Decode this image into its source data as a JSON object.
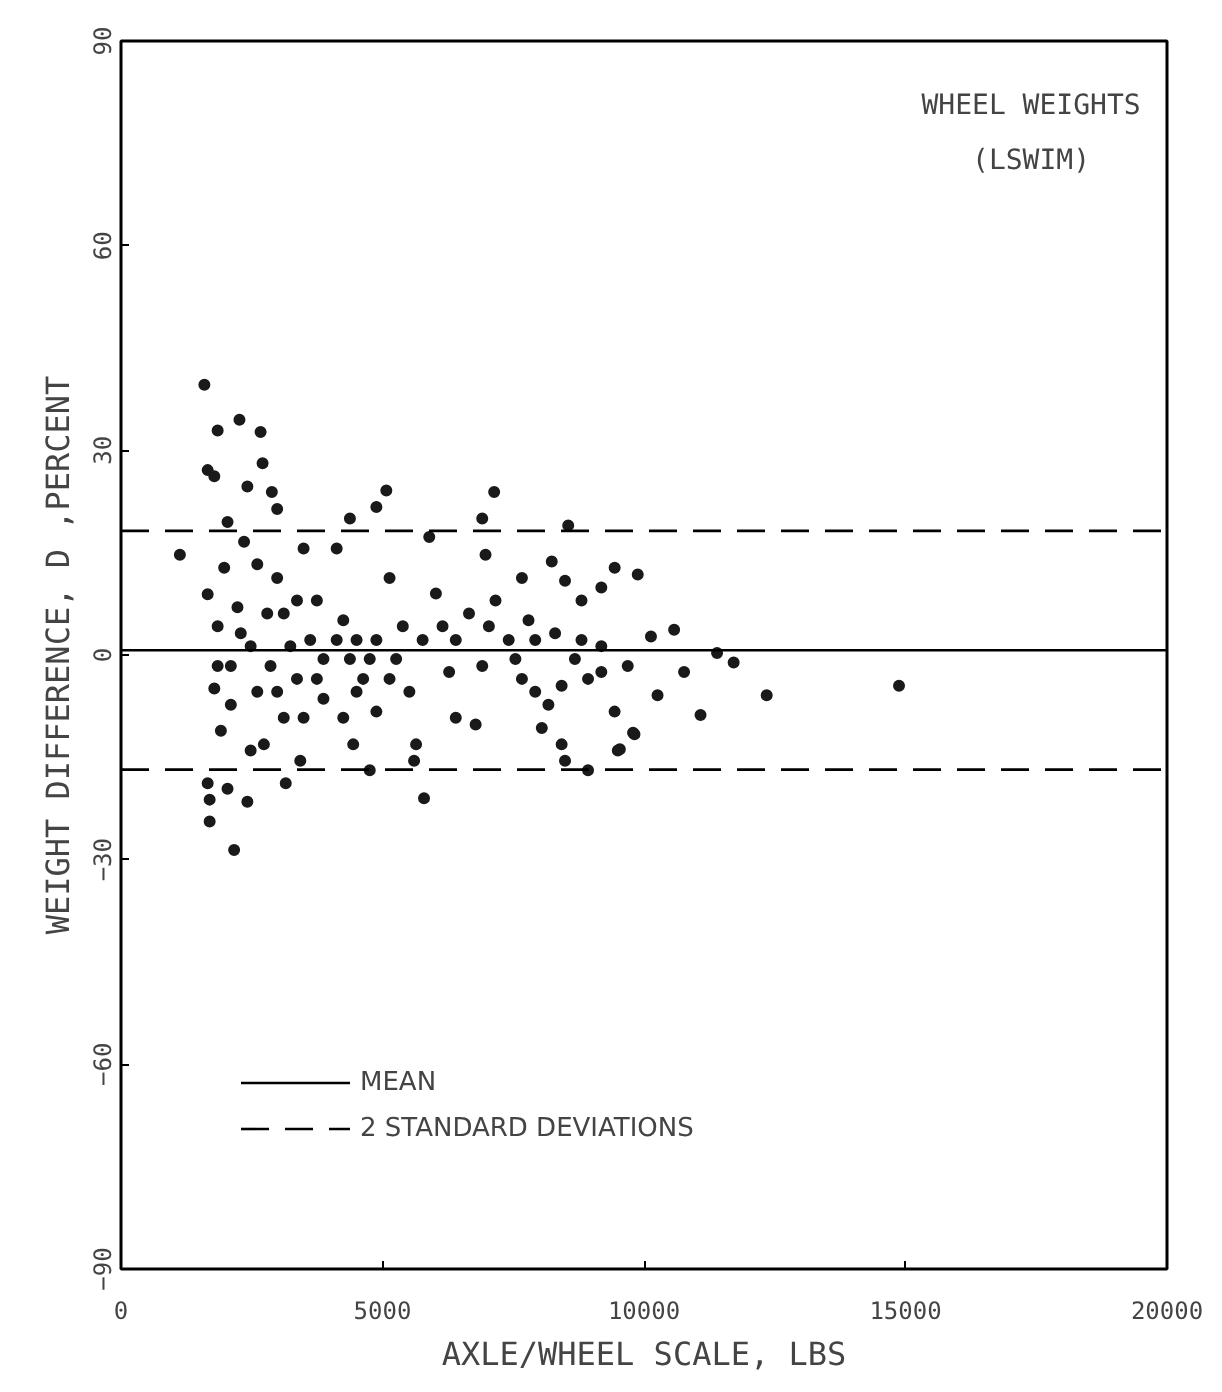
{
  "chart_data": {
    "type": "scatter",
    "title": "WHEEL WEIGHTS",
    "subtitle": "(LSWIM)",
    "xlabel": "AXLE/WHEEL SCALE, LBS",
    "ylabel": "WEIGHT DIFFERENCE, D ,PERCENT",
    "x": [
      1594,
      1848,
      2265,
      2669,
      2707,
      1657,
      1784,
      2416,
      5073,
      7135,
      2884,
      4883,
      4377,
      6907,
      8551,
      1126,
      5894,
      6970,
      9880,
      9439,
      8236,
      8490,
      7666,
      5135,
      4124,
      3491,
      2986,
      2037,
      2353,
      2606,
      1973,
      1657,
      2986,
      2227,
      3112,
      3745,
      4250,
      4504,
      4756,
      3871,
      3238,
      2479,
      1848,
      1848,
      1784,
      2100,
      1910,
      2479,
      2732,
      3112,
      3428,
      3150,
      3871,
      4250,
      4440,
      4756,
      4883,
      5135,
      5514,
      5642,
      5604,
      5794,
      1657,
      1695,
      2037,
      2416,
      1695,
      2163,
      6274,
      6401,
      6781,
      6654,
      6148,
      6021,
      7161,
      7413,
      6907,
      7541,
      7666,
      7920,
      8172,
      8046,
      8425,
      8490,
      8930,
      9499,
      9818,
      9438,
      8930,
      8679,
      9184,
      9689,
      8300,
      7792,
      8805,
      9184,
      10133,
      10576,
      10259,
      10766,
      11081,
      11397,
      11714,
      12346,
      14876,
      9538,
      9791,
      4377,
      4630,
      4883,
      5261,
      4124,
      3618,
      3365,
      2859,
      2606,
      2986,
      3491,
      3745,
      4504,
      2100,
      2290,
      2796,
      3365,
      5388,
      5767,
      6401,
      7034,
      7920,
      8805,
      9184,
      8425
    ],
    "values": [
      39.6,
      32.9,
      34.5,
      32.7,
      28.1,
      27.1,
      26.2,
      24.7,
      24.1,
      23.9,
      23.9,
      21.7,
      20.0,
      20.0,
      19.0,
      14.7,
      17.3,
      14.7,
      11.8,
      12.8,
      13.7,
      10.9,
      11.3,
      11.3,
      15.6,
      15.6,
      21.4,
      19.5,
      16.6,
      13.3,
      12.8,
      8.9,
      11.3,
      7.0,
      6.1,
      8.0,
      5.1,
      2.2,
      -0.6,
      -0.6,
      1.3,
      1.3,
      4.2,
      -1.6,
      -4.9,
      -7.3,
      -11.1,
      -14.0,
      -13.1,
      -9.2,
      -15.5,
      -18.8,
      -6.4,
      -9.2,
      -13.1,
      -16.9,
      -8.3,
      -3.5,
      -5.4,
      -13.1,
      -15.5,
      -21.0,
      -18.8,
      -21.2,
      -19.6,
      -21.5,
      -24.4,
      -28.6,
      -2.5,
      -9.2,
      -10.2,
      6.1,
      4.2,
      9.0,
      8.0,
      2.2,
      -1.6,
      -0.6,
      -3.5,
      -5.4,
      -7.3,
      -10.7,
      -13.1,
      -15.5,
      -16.9,
      -14.0,
      -11.6,
      -8.3,
      -3.5,
      -0.6,
      1.3,
      -1.6,
      3.2,
      5.1,
      8.0,
      9.9,
      2.7,
      3.7,
      -5.9,
      -2.5,
      -8.8,
      0.3,
      -1.1,
      -5.9,
      -4.5,
      -13.8,
      -11.4,
      -0.6,
      -3.5,
      2.2,
      -0.6,
      2.2,
      2.2,
      -3.5,
      -1.6,
      -5.4,
      -5.4,
      -9.2,
      -3.5,
      -5.4,
      -1.6,
      3.2,
      6.1,
      8.0,
      4.2,
      2.2,
      2.2,
      4.2,
      2.2,
      2.2,
      -2.5,
      -4.5
    ],
    "color": "#1a1a1a",
    "marker": "circle",
    "xlim": [
      0,
      20000
    ],
    "ylim": [
      -90,
      90
    ],
    "xticks": [
      0,
      5000,
      10000,
      15000,
      20000
    ],
    "yticks": [
      -90,
      -60,
      -30,
      0,
      30,
      60,
      90
    ],
    "grid": false,
    "ref_lines": [
      {
        "axis": "y",
        "value": 0.7,
        "label": "MEAN",
        "line_style": "solid"
      },
      {
        "axis": "y",
        "value": 18.2,
        "label": "2 STANDARD DEVIATIONS",
        "line_style": "dashed"
      },
      {
        "axis": "y",
        "value": -16.8,
        "label": null,
        "line_style": "dashed"
      }
    ],
    "legend": "bottom left"
  }
}
